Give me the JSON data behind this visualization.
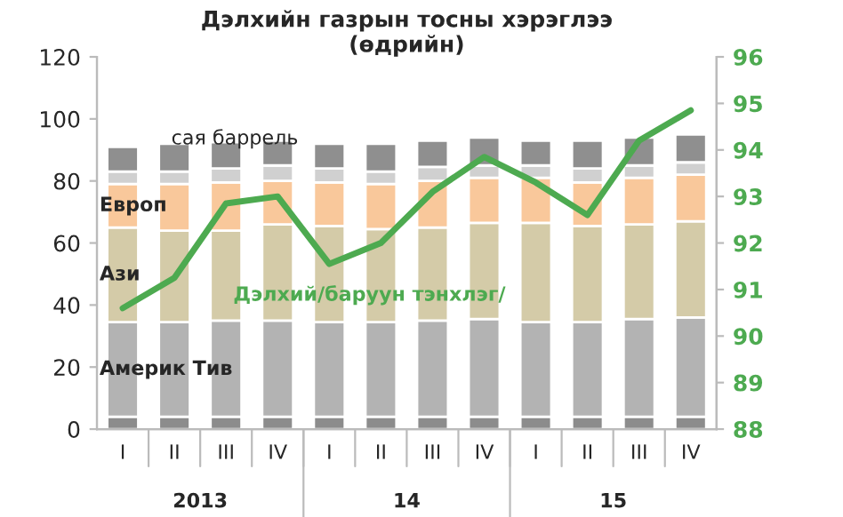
{
  "chart_data": {
    "type": "bar",
    "stacked": true,
    "title": "Дэлхийн газрын тосны хэрэглээ\n(өдрийн)",
    "categories": [
      "I",
      "II",
      "III",
      "IV",
      "I",
      "II",
      "III",
      "IV",
      "I",
      "II",
      "III",
      "IV"
    ],
    "series": [
      {
        "color": "#8c8c8c",
        "values": [
          4,
          4,
          4,
          4,
          4,
          4,
          4,
          4,
          4,
          4,
          4,
          4
        ]
      },
      {
        "name": "Америк Тив",
        "color": "#b3b3b3",
        "values": [
          30.5,
          30.5,
          31,
          31,
          30.5,
          30.5,
          31,
          31.5,
          30.5,
          30.5,
          31.5,
          32
        ]
      },
      {
        "name": "Ази",
        "color": "#d4cba8",
        "values": [
          30.5,
          29.5,
          29,
          31,
          31,
          30,
          30,
          31,
          32,
          31,
          30.5,
          31
        ]
      },
      {
        "name": "Европ",
        "color": "#f9c89b",
        "values": [
          14,
          15,
          15.5,
          14,
          14,
          14.5,
          15,
          14.5,
          14.5,
          14,
          15,
          15
        ]
      },
      {
        "color": "#d0d0d0",
        "values": [
          4,
          4,
          4.5,
          5,
          4.5,
          4,
          4.5,
          4,
          4,
          4.5,
          4,
          4
        ]
      },
      {
        "color": "#8f8f8f",
        "values": [
          8,
          9,
          8.5,
          8,
          8,
          9,
          8.5,
          9,
          8,
          9,
          9,
          9
        ]
      },
      {
        "name": "Дэлхий/баруун тэнхлэг/",
        "type": "line",
        "axis": "y2",
        "color": "#4daa50",
        "values": [
          90.6,
          91.25,
          92.85,
          93.0,
          91.55,
          92.0,
          93.1,
          93.85,
          93.3,
          92.6,
          94.2,
          94.85
        ]
      }
    ],
    "ylim": [
      0,
      120
    ],
    "yticks": [
      0,
      20,
      40,
      60,
      80,
      100,
      120
    ],
    "y2lim": [
      88,
      96
    ],
    "y2ticks": [
      88,
      89,
      90,
      91,
      92,
      93,
      94,
      95,
      96
    ],
    "annotations": [
      "сая баррель",
      "2013",
      "14",
      "15"
    ],
    "legend": false,
    "grid": false
  }
}
